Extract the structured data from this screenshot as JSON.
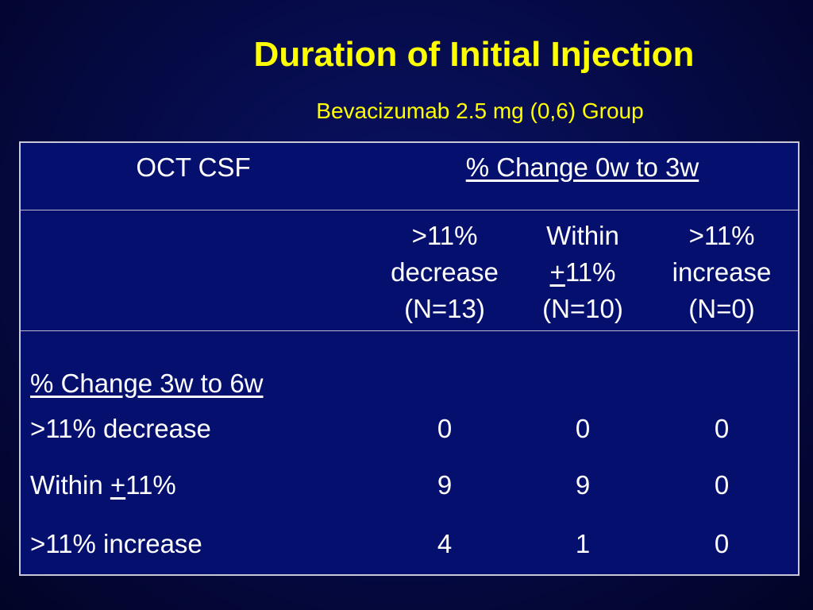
{
  "slide": {
    "title": "Duration of Initial Injection",
    "subtitle": "Bevacizumab 2.5 mg (0,6) Group"
  },
  "table": {
    "left_header": "OCT CSF",
    "top_header": "% Change 0w to 3w",
    "columns": [
      {
        "line1": ">11%",
        "line2_prefix": "",
        "line2": "decrease",
        "line3": "(N=13)"
      },
      {
        "line1": "Within",
        "line2_prefix": "+",
        "line2": "11%",
        "line3": "(N=10)"
      },
      {
        "line1": ">11%",
        "line2_prefix": "",
        "line2": "increase",
        "line3": "(N=0)"
      }
    ],
    "row_section_header": "% Change 3w to 6w",
    "rows": [
      {
        "label_prefix": ">11% decrease",
        "label_plus": "",
        "label_suffix": "",
        "values": [
          "0",
          "0",
          "0"
        ]
      },
      {
        "label_prefix": "Within ",
        "label_plus": "+",
        "label_suffix": "11%",
        "values": [
          "9",
          "9",
          "0"
        ]
      },
      {
        "label_prefix": ">11% increase",
        "label_plus": "",
        "label_suffix": "",
        "values": [
          "4",
          "1",
          "0"
        ]
      }
    ]
  },
  "colors": {
    "background": "#050a45",
    "title": "#ffff00",
    "text": "#ffffff",
    "border": "#c9c9d6"
  }
}
